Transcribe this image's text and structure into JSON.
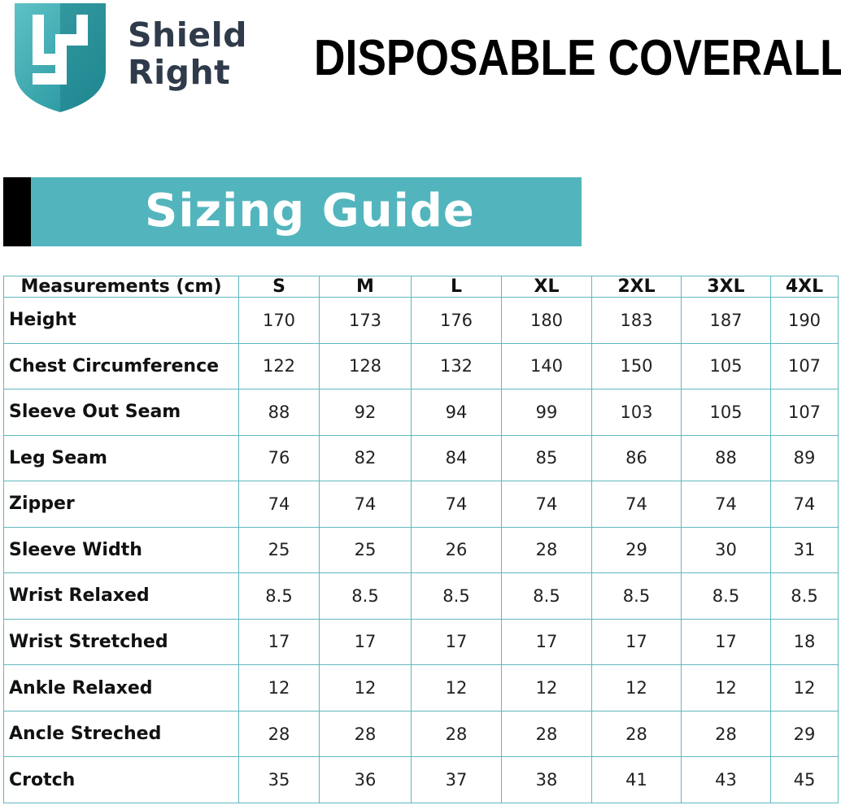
{
  "brand": {
    "line1": "Shield",
    "line2": "Right"
  },
  "headline": "DISPOSABLE COVERALLS",
  "banner": {
    "title": "Sizing Guide"
  },
  "table": {
    "header": [
      "Measurements (cm)",
      "S",
      "M",
      "L",
      "XL",
      "2XL",
      "3XL",
      "4XL"
    ],
    "rows": [
      [
        "Height",
        "170",
        "173",
        "176",
        "180",
        "183",
        "187",
        "190"
      ],
      [
        "Chest Circumference",
        "122",
        "128",
        "132",
        "140",
        "150",
        "105",
        "107"
      ],
      [
        "Sleeve Out Seam",
        "88",
        "92",
        "94",
        "99",
        "103",
        "105",
        "107"
      ],
      [
        "Leg Seam",
        "76",
        "82",
        "84",
        "85",
        "86",
        "88",
        "89"
      ],
      [
        "Zipper",
        "74",
        "74",
        "74",
        "74",
        "74",
        "74",
        "74"
      ],
      [
        "Sleeve Width",
        "25",
        "25",
        "26",
        "28",
        "29",
        "30",
        "31"
      ],
      [
        "Wrist Relaxed",
        "8.5",
        "8.5",
        "8.5",
        "8.5",
        "8.5",
        "8.5",
        "8.5"
      ],
      [
        "Wrist Stretched",
        "17",
        "17",
        "17",
        "17",
        "17",
        "17",
        "18"
      ],
      [
        "Ankle Relaxed",
        "12",
        "12",
        "12",
        "12",
        "12",
        "12",
        "12"
      ],
      [
        "Ancle Streched",
        "28",
        "28",
        "28",
        "28",
        "28",
        "28",
        "29"
      ],
      [
        "Crotch",
        "35",
        "36",
        "37",
        "38",
        "41",
        "43",
        "45"
      ]
    ]
  },
  "colors": {
    "accent": "#52b5bd",
    "grid": "#5fb8bf",
    "brand_text": "#2f3a4a"
  }
}
